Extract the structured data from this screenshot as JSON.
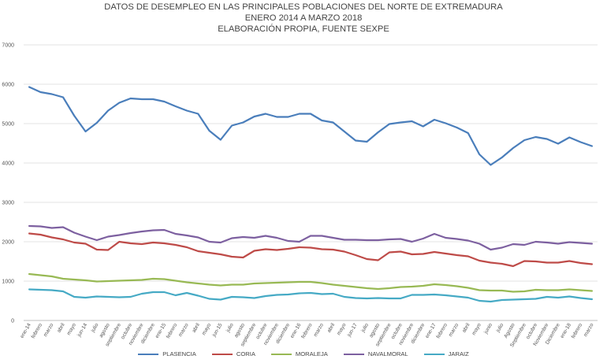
{
  "chart_data": {
    "type": "line",
    "title": "DATOS DE DESEMPLEO EN LAS PRINCIPALES POBLACIONES DEL NORTE DE EXTREMADURA",
    "subtitle": [
      "ENERO 2014 A  MARZO 2018",
      "ELABORACIÓN PROPIA, FUENTE SEXPE"
    ],
    "xlabel": "",
    "ylabel": "",
    "ylim": [
      0,
      7000
    ],
    "yticks": [
      0,
      1000,
      2000,
      3000,
      4000,
      5000,
      6000,
      7000
    ],
    "grid": true,
    "legend_position": "bottom",
    "categories": [
      "ene-14",
      "febrero",
      "marzo",
      "abril",
      "mayo",
      "jun-14",
      "julio",
      "agosto",
      "septiembre",
      "octubre",
      "noviembre",
      "diciembre",
      "ene-15",
      "febrero",
      "marzo",
      "abril",
      "mayo",
      "jun-15",
      "julio",
      "agosto",
      "septiembre",
      "octubre",
      "noviembre",
      "diciembre",
      "ene-16",
      "febrero",
      "marzo",
      "abril",
      "mayo",
      "jun-17",
      "julio",
      "agosto",
      "septiembre",
      "octubre",
      "noviembre",
      "diciembre",
      "ene-17",
      "febrero",
      "marzo",
      "abril",
      "mayo",
      "junio",
      "julio",
      "Agosto",
      "Septiembre",
      "octubre",
      "Noviembre",
      "Diciembre",
      "ene-18",
      "febrero",
      "marzo"
    ],
    "series": [
      {
        "name": "PLASENCIA",
        "color": "#4a7ebb",
        "values": [
          5930,
          5800,
          5750,
          5670,
          5200,
          4800,
          5020,
          5330,
          5530,
          5640,
          5620,
          5620,
          5560,
          5440,
          5330,
          5250,
          4820,
          4590,
          4950,
          5030,
          5180,
          5250,
          5170,
          5170,
          5250,
          5250,
          5080,
          5030,
          4800,
          4570,
          4540,
          4780,
          4990,
          5030,
          5060,
          4930,
          5100,
          5010,
          4900,
          4760,
          4220,
          3950,
          4140,
          4380,
          4580,
          4660,
          4610,
          4490,
          4650,
          4530,
          4430
        ]
      },
      {
        "name": "CORIA",
        "color": "#be4b48",
        "values": [
          2210,
          2180,
          2110,
          2060,
          1980,
          1950,
          1800,
          1790,
          2000,
          1960,
          1940,
          1980,
          1960,
          1920,
          1860,
          1760,
          1720,
          1680,
          1620,
          1600,
          1770,
          1810,
          1790,
          1820,
          1860,
          1850,
          1810,
          1800,
          1750,
          1660,
          1560,
          1530,
          1730,
          1750,
          1680,
          1690,
          1740,
          1700,
          1660,
          1630,
          1520,
          1470,
          1440,
          1380,
          1510,
          1500,
          1470,
          1470,
          1510,
          1460,
          1430
        ]
      },
      {
        "name": "MORALEJA",
        "color": "#98b954",
        "values": [
          1180,
          1150,
          1120,
          1060,
          1040,
          1020,
          990,
          1000,
          1010,
          1020,
          1030,
          1060,
          1050,
          1010,
          970,
          940,
          910,
          890,
          910,
          910,
          940,
          950,
          960,
          970,
          980,
          980,
          950,
          910,
          880,
          850,
          820,
          800,
          820,
          850,
          860,
          880,
          920,
          900,
          870,
          830,
          770,
          760,
          760,
          730,
          740,
          780,
          770,
          770,
          790,
          770,
          750
        ]
      },
      {
        "name": "NAVALMORAL",
        "color": "#7d60a0",
        "values": [
          2400,
          2390,
          2350,
          2370,
          2230,
          2130,
          2040,
          2130,
          2170,
          2220,
          2260,
          2290,
          2300,
          2200,
          2160,
          2110,
          2000,
          1980,
          2090,
          2120,
          2100,
          2150,
          2100,
          2020,
          2000,
          2150,
          2150,
          2100,
          2050,
          2050,
          2040,
          2040,
          2060,
          2070,
          2000,
          2080,
          2200,
          2100,
          2070,
          2030,
          1950,
          1800,
          1850,
          1940,
          1920,
          2000,
          1980,
          1950,
          1990,
          1970,
          1950
        ]
      },
      {
        "name": "JARAIZ",
        "color": "#46aac5",
        "values": [
          790,
          780,
          770,
          740,
          600,
          580,
          610,
          600,
          590,
          600,
          680,
          720,
          720,
          640,
          700,
          630,
          550,
          530,
          600,
          590,
          570,
          620,
          650,
          660,
          690,
          700,
          670,
          680,
          600,
          570,
          560,
          570,
          560,
          560,
          650,
          650,
          660,
          640,
          610,
          580,
          500,
          480,
          520,
          530,
          540,
          550,
          600,
          580,
          610,
          570,
          540
        ]
      }
    ]
  }
}
